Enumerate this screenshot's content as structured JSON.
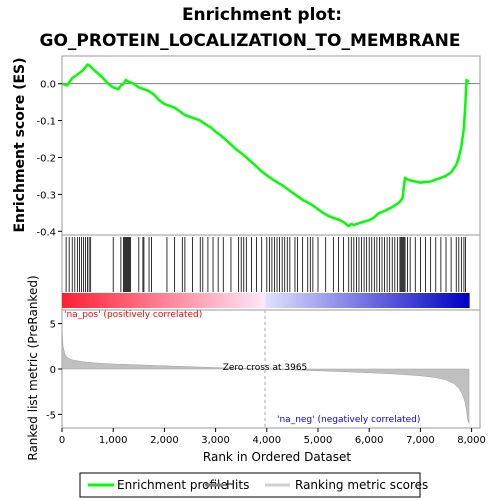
{
  "chart_data": {
    "type": "line",
    "title": "Enrichment plot:",
    "subtitle": "GO_PROTEIN_LOCALIZATION_TO_MEMBRANE",
    "colors": {
      "enrichment": "#00ff00",
      "hits": "#000000",
      "ranking": "#c0c0c0",
      "pos_text": "#ff0000",
      "neg_text": "#0000ff"
    },
    "panels": {
      "es": {
        "ylabel": "Enrichment score (ES)",
        "yticks": [
          "0.0",
          "-0.1",
          "-0.2",
          "-0.3",
          "-0.4"
        ],
        "ylim": [
          -0.41,
          0.075
        ],
        "x": [
          0,
          100,
          200,
          300,
          400,
          500,
          550,
          600,
          700,
          800,
          900,
          1000,
          1100,
          1150,
          1200,
          1250,
          1300,
          1400,
          1500,
          1600,
          1700,
          1800,
          1900,
          2000,
          2100,
          2200,
          2300,
          2400,
          2500,
          2600,
          2700,
          2800,
          2900,
          3000,
          3100,
          3200,
          3300,
          3400,
          3500,
          3600,
          3700,
          3800,
          3900,
          4000,
          4100,
          4200,
          4300,
          4400,
          4500,
          4600,
          4700,
          4800,
          4900,
          5000,
          5100,
          5200,
          5300,
          5400,
          5500,
          5600,
          5650,
          5700,
          5800,
          5900,
          6000,
          6100,
          6150,
          6200,
          6300,
          6400,
          6500,
          6600,
          6650,
          6700,
          6750,
          6800,
          6900,
          7000,
          7100,
          7200,
          7300,
          7400,
          7500,
          7600,
          7700,
          7750,
          7800,
          7850,
          7880,
          7900,
          7950
        ],
        "y": [
          0.0,
          -0.005,
          0.015,
          0.025,
          0.035,
          0.052,
          0.048,
          0.04,
          0.028,
          0.015,
          0.0,
          -0.01,
          -0.015,
          -0.005,
          0.0,
          0.01,
          0.005,
          0.0,
          -0.01,
          -0.015,
          -0.02,
          -0.03,
          -0.045,
          -0.055,
          -0.06,
          -0.065,
          -0.075,
          -0.085,
          -0.09,
          -0.095,
          -0.1,
          -0.11,
          -0.118,
          -0.13,
          -0.14,
          -0.152,
          -0.165,
          -0.178,
          -0.188,
          -0.2,
          -0.212,
          -0.225,
          -0.238,
          -0.248,
          -0.258,
          -0.267,
          -0.275,
          -0.285,
          -0.295,
          -0.305,
          -0.315,
          -0.322,
          -0.33,
          -0.34,
          -0.35,
          -0.358,
          -0.364,
          -0.368,
          -0.375,
          -0.386,
          -0.38,
          -0.383,
          -0.378,
          -0.374,
          -0.37,
          -0.362,
          -0.355,
          -0.35,
          -0.345,
          -0.338,
          -0.33,
          -0.32,
          -0.31,
          -0.255,
          -0.26,
          -0.262,
          -0.265,
          -0.268,
          -0.266,
          -0.265,
          -0.26,
          -0.255,
          -0.25,
          -0.24,
          -0.22,
          -0.2,
          -0.17,
          -0.12,
          -0.05,
          0.01,
          0.005
        ]
      },
      "hits": {
        "positions": [
          80,
          140,
          200,
          250,
          300,
          340,
          380,
          420,
          460,
          500,
          530,
          560,
          1000,
          1150,
          1200,
          1220,
          1240,
          1260,
          1280,
          1300,
          1320,
          1340,
          1500,
          1580,
          1600,
          1700,
          1750,
          2050,
          2200,
          2350,
          2400,
          2550,
          2700,
          2750,
          2850,
          2950,
          3050,
          3150,
          3300,
          3450,
          3500,
          3550,
          3600,
          3700,
          3800,
          3900,
          4000,
          4050,
          4100,
          4150,
          4200,
          4250,
          4300,
          4350,
          4400,
          4450,
          4550,
          4600,
          4700,
          4800,
          4850,
          4900,
          5000,
          5150,
          5300,
          5400,
          5500,
          5600,
          5650,
          5700,
          5750,
          5800,
          5850,
          5900,
          5950,
          6000,
          6050,
          6100,
          6150,
          6200,
          6250,
          6300,
          6350,
          6400,
          6450,
          6500,
          6550,
          6600,
          6620,
          6640,
          6660,
          6680,
          6700,
          6750,
          6800,
          6900,
          7000,
          7100,
          7200,
          7300,
          7400,
          7500,
          7600,
          7700,
          7750,
          7800,
          7850,
          7880
        ]
      },
      "ranked": {
        "ylabel": "Ranked list metric (PreRanked)",
        "yticks": [
          "5",
          "0",
          "-5"
        ],
        "ylim": [
          -6.5,
          6.5
        ],
        "x": [
          0,
          20,
          60,
          120,
          200,
          400,
          700,
          1000,
          1500,
          2000,
          2500,
          3000,
          3500,
          3965,
          4500,
          5000,
          5500,
          6000,
          6500,
          7000,
          7300,
          7500,
          7650,
          7750,
          7820,
          7870,
          7900,
          7920,
          7950
        ],
        "y": [
          5.0,
          2.5,
          1.6,
          1.2,
          1.0,
          0.8,
          0.65,
          0.55,
          0.45,
          0.35,
          0.25,
          0.15,
          0.07,
          0.0,
          -0.1,
          -0.2,
          -0.3,
          -0.42,
          -0.55,
          -0.75,
          -0.95,
          -1.2,
          -1.6,
          -2.1,
          -2.8,
          -3.6,
          -4.6,
          -5.5,
          -6.0
        ]
      }
    },
    "xlabel": "Rank in Ordered Dataset",
    "xticks": [
      "0",
      "1,000",
      "2,000",
      "3,000",
      "4,000",
      "5,000",
      "6,000",
      "7,000",
      "8,000"
    ],
    "xlim": [
      0,
      8300
    ],
    "n_genes": 7950,
    "zero_cross": 3965,
    "annotations": {
      "zero_cross": "Zero cross at 3965",
      "pos": "'na_pos' (positively correlated)",
      "neg": "'na_neg' (negatively correlated)"
    },
    "legend": {
      "position": "bottom",
      "items": [
        "Enrichment profile",
        "Hits",
        "Ranking metric scores"
      ]
    }
  }
}
